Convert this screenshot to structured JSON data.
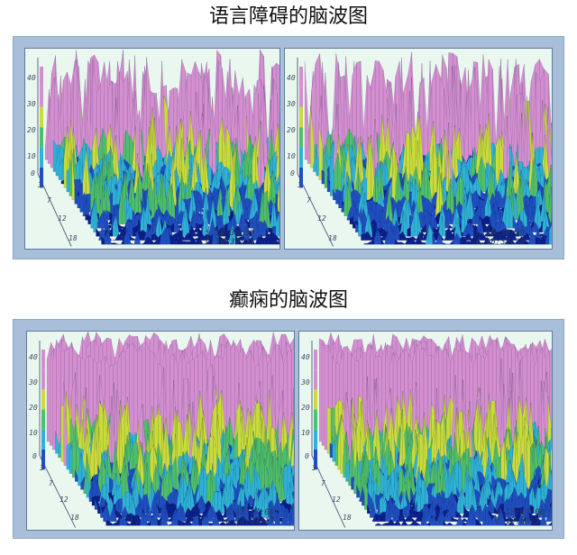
{
  "sections": [
    {
      "title": "语言障碍的脑波图",
      "panels": [
        {
          "stamp_s": "S 10:30:39",
          "stamp_c": "C 10:32:33"
        },
        {
          "stamp_s": "S 10:30:39",
          "stamp_c": "C 10:32:33"
        }
      ],
      "y_ticks": [
        "40",
        "30",
        "20",
        "10"
      ],
      "z_ticks": [
        "0",
        "3",
        "7",
        "12",
        "18"
      ]
    },
    {
      "title": "癫痫的脑波图",
      "panels": [
        {
          "stamp_s": "S 13:17:00",
          "stamp_c": "C 12:03:17"
        },
        {
          "stamp_s": "S 13:17:00",
          "stamp_c": "C 12:03:1"
        }
      ],
      "y_ticks": [
        "40",
        "30",
        "20",
        "10"
      ],
      "z_ticks": [
        "0",
        "3",
        "7",
        "12",
        "18"
      ]
    }
  ],
  "colors": {
    "frame": "#a9bfd9",
    "panel_bg": "#eaf7ef",
    "pink": "#d48fd0",
    "yellow": "#c9dc3b",
    "green": "#4fbf6a",
    "cyan": "#2fb2d6",
    "blue": "#1f4fc0",
    "navy": "#0b1f8a"
  }
}
